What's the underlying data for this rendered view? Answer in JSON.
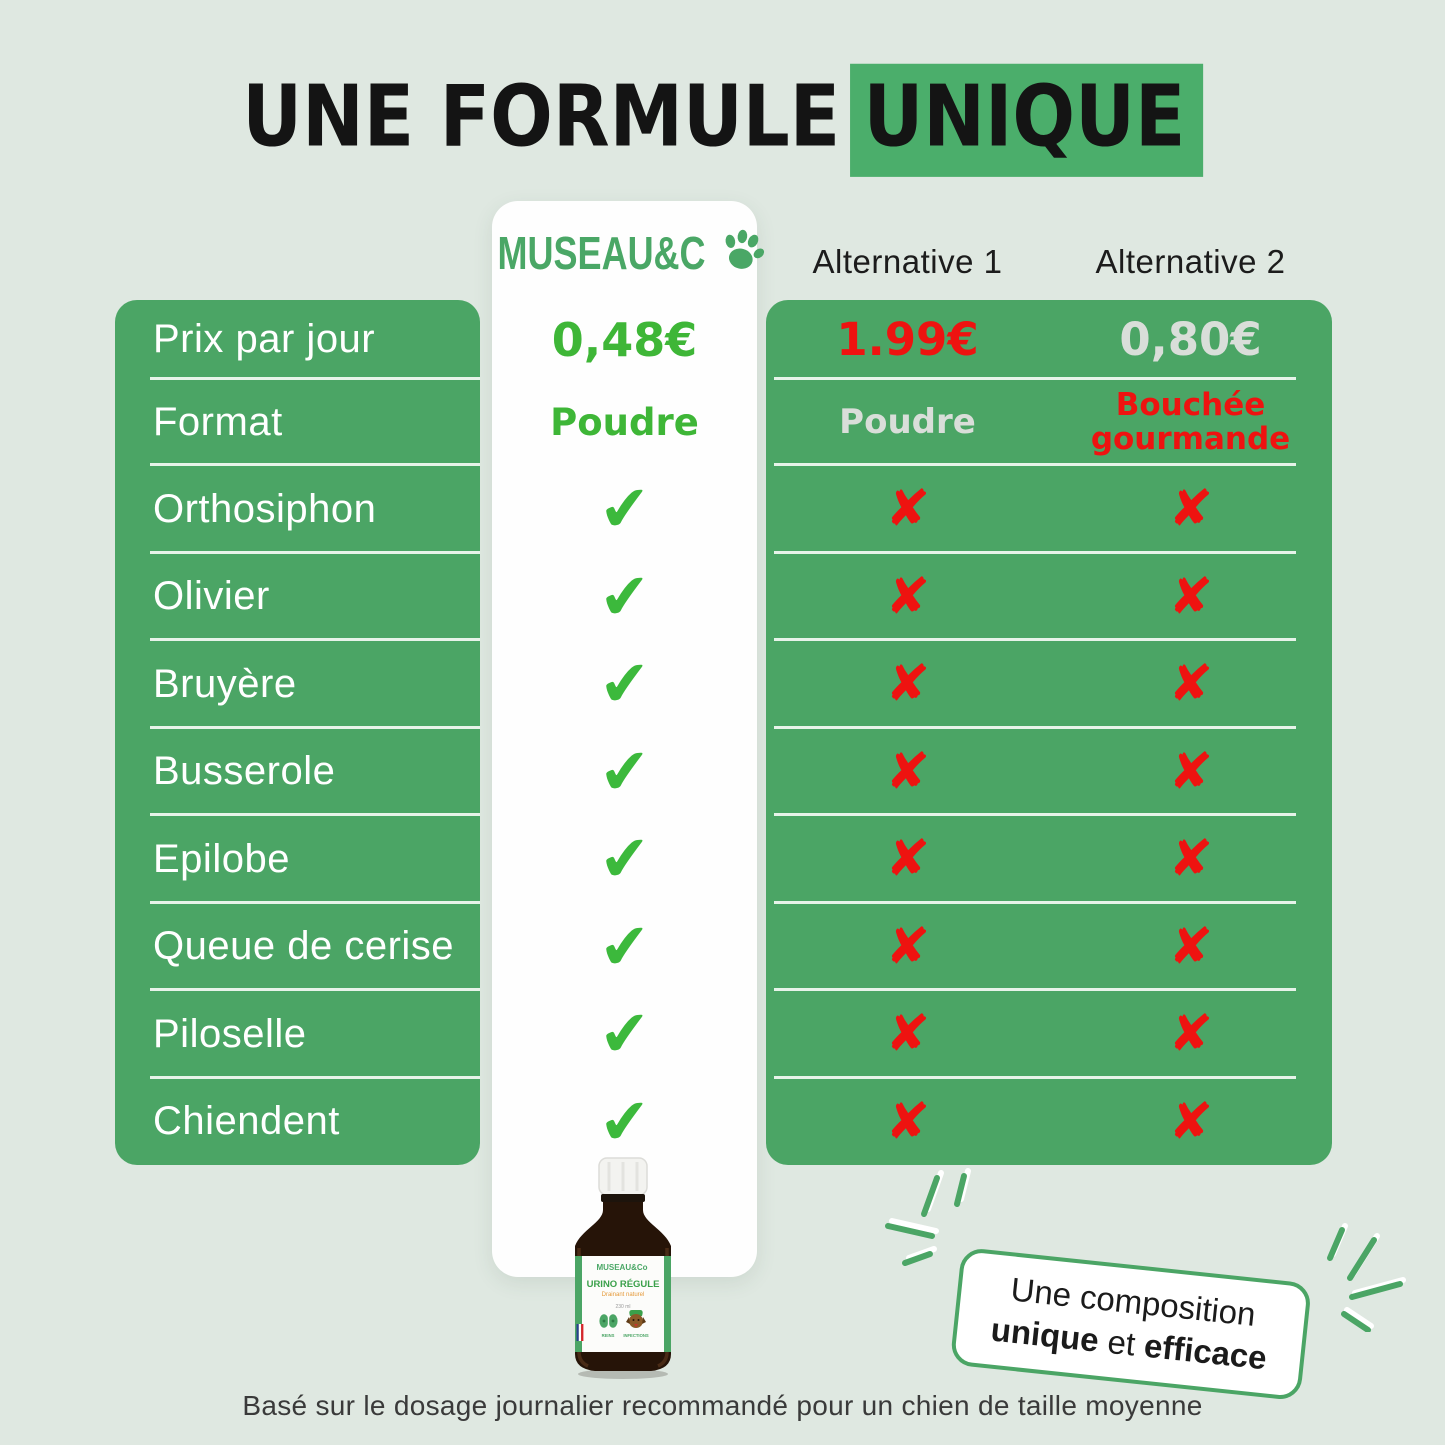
{
  "title": {
    "text": "UNE FORMULE",
    "highlight": "UNIQUE"
  },
  "header": {
    "brand": "MUSEAU&C",
    "alt1": "Alternative 1",
    "alt2": "Alternative 2"
  },
  "table": {
    "check_glyph": "✔",
    "cross_glyph": "✘",
    "rows": [
      {
        "type": "text",
        "label": "Prix par jour",
        "museau": "0,48€",
        "museau_style": "green-lg",
        "alt1": "1.99€",
        "alt1_style": "red-lg",
        "alt2": "0,80€",
        "alt2_style": "gray-lg"
      },
      {
        "type": "text",
        "label": "Format",
        "museau": "Poudre",
        "museau_style": "green-md",
        "alt1": "Poudre",
        "alt1_style": "gray-md",
        "alt2": "Bouchée gourmande",
        "alt2_style": "red-md"
      },
      {
        "type": "mark",
        "label": "Orthosiphon"
      },
      {
        "type": "mark",
        "label": "Olivier"
      },
      {
        "type": "mark",
        "label": "Bruyère"
      },
      {
        "type": "mark",
        "label": "Busserole"
      },
      {
        "type": "mark",
        "label": "Epilobe"
      },
      {
        "type": "mark",
        "label": "Queue de cerise"
      },
      {
        "type": "mark",
        "label": "Piloselle"
      },
      {
        "type": "mark",
        "label": "Chiendent"
      }
    ]
  },
  "bottle": {
    "brand": "MUSEAU&Co",
    "title": "URINO RÉGULE",
    "subtitle": "Drainant naturel",
    "volume": "230 ml",
    "icon1_label": "REINS",
    "icon2_label": "INFECTIONS"
  },
  "badge": {
    "line1": "Une composition",
    "bold1": "unique",
    "mid": " et ",
    "bold2": "efficace"
  },
  "footer": {
    "note": "Basé sur le dosage journalier recommandé pour un chien de taille moyenne"
  },
  "colors": {
    "background": "#dfe8e1",
    "panel_green": "#4ba565",
    "vivid_green": "#3eb637",
    "check_green": "#3cb93c",
    "logo_green": "#4aa766",
    "alert_red": "#ee1310",
    "muted_gray": "#d9ded9",
    "title_highlight": "#4bae6b",
    "text_dark": "#141414",
    "footer_text": "#3a3a3a"
  }
}
